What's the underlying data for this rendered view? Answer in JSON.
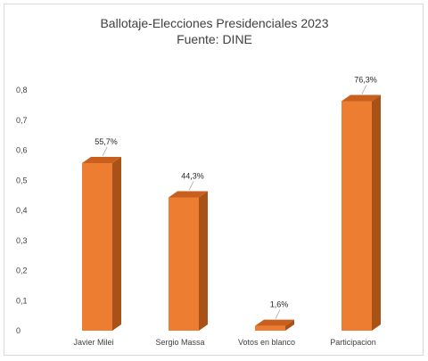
{
  "chart_data": {
    "type": "bar",
    "title": "Ballotaje-Elecciones Presidenciales 2023",
    "subtitle": "Fuente: DINE",
    "categories": [
      "Javier Milei",
      "Sergio Massa",
      "Votos en blanco",
      "Participacion"
    ],
    "values": [
      0.557,
      0.443,
      0.016,
      0.763
    ],
    "data_labels": [
      "55,7%",
      "44,3%",
      "1,6%",
      "76,3%"
    ],
    "ylim": [
      0,
      0.8
    ],
    "yticks": [
      "0",
      "0,1",
      "0,2",
      "0,3",
      "0,4",
      "0,5",
      "0,6",
      "0,7",
      "0,8"
    ],
    "grid": false,
    "legend": "none",
    "bar_style": "3d",
    "colors": {
      "front": "#ED7D31",
      "side": "#A85218",
      "top": "#C85F1E",
      "text": "#404040",
      "leader": "#A6A6A6"
    }
  }
}
